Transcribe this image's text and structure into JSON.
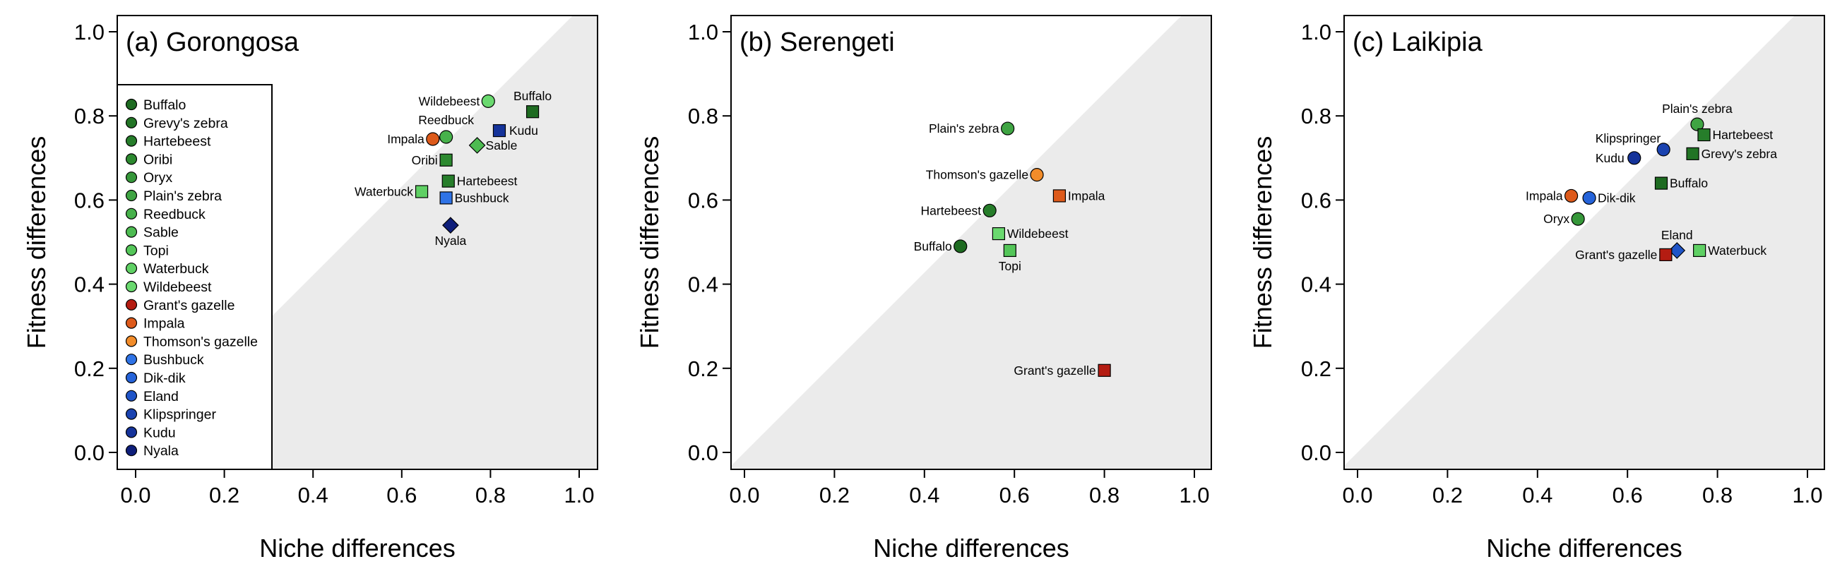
{
  "chart_data": [
    {
      "type": "scatter",
      "title": "(a) Gorongosa",
      "xlabel": "Niche differences",
      "ylabel": "Fitness differences",
      "xlim": [
        0,
        1
      ],
      "ylim": [
        0,
        1
      ],
      "xticks": [
        "0.0",
        "0.2",
        "0.4",
        "0.6",
        "0.8",
        "1.0"
      ],
      "yticks": [
        "0.0",
        "0.2",
        "0.4",
        "0.6",
        "0.8",
        "1.0"
      ],
      "shaded_region": "below the 1:1 line",
      "legend_position": "left",
      "legend": [
        {
          "label": "Buffalo",
          "color": "#1e6b21"
        },
        {
          "label": "Grevy's zebra",
          "color": "#227425"
        },
        {
          "label": "Hartebeest",
          "color": "#267d2a"
        },
        {
          "label": "Oribi",
          "color": "#2c892f"
        },
        {
          "label": "Oryx",
          "color": "#36973a"
        },
        {
          "label": "Plain's zebra",
          "color": "#3fa443"
        },
        {
          "label": "Reedbuck",
          "color": "#47b14b"
        },
        {
          "label": "Sable",
          "color": "#4dbb51"
        },
        {
          "label": "Topi",
          "color": "#54c659"
        },
        {
          "label": "Waterbuck",
          "color": "#5fd064"
        },
        {
          "label": "Wildebeest",
          "color": "#6ad96f"
        },
        {
          "label": "Grant's gazelle",
          "color": "#b41c12"
        },
        {
          "label": "Impala",
          "color": "#dd5a1b"
        },
        {
          "label": "Thomson's gazelle",
          "color": "#f28c2a"
        },
        {
          "label": "Bushbuck",
          "color": "#2f73e6"
        },
        {
          "label": "Dik-dik",
          "color": "#2563d9"
        },
        {
          "label": "Eland",
          "color": "#1f54c7"
        },
        {
          "label": "Klipspringer",
          "color": "#1a43b0"
        },
        {
          "label": "Kudu",
          "color": "#15339a"
        },
        {
          "label": "Nyala",
          "color": "#0e1e7a"
        }
      ],
      "points": [
        {
          "label": "Wildebeest",
          "x": 0.795,
          "y": 0.835,
          "shape": "circle",
          "color": "#6ad96f"
        },
        {
          "label": "Buffalo",
          "x": 0.895,
          "y": 0.81,
          "shape": "square",
          "color": "#1e6b21"
        },
        {
          "label": "Reedbuck",
          "x": 0.7,
          "y": 0.75,
          "shape": "circle",
          "color": "#47b14b"
        },
        {
          "label": "Kudu",
          "x": 0.82,
          "y": 0.765,
          "shape": "square",
          "color": "#15339a"
        },
        {
          "label": "Impala",
          "x": 0.67,
          "y": 0.745,
          "shape": "circle",
          "color": "#dd5a1b"
        },
        {
          "label": "Sable",
          "x": 0.77,
          "y": 0.73,
          "shape": "diamond",
          "color": "#4dbb51"
        },
        {
          "label": "Oribi",
          "x": 0.7,
          "y": 0.695,
          "shape": "square",
          "color": "#2c892f"
        },
        {
          "label": "Hartebeest",
          "x": 0.705,
          "y": 0.645,
          "shape": "square",
          "color": "#267d2a"
        },
        {
          "label": "Waterbuck",
          "x": 0.645,
          "y": 0.62,
          "shape": "square",
          "color": "#5fd064"
        },
        {
          "label": "Bushbuck",
          "x": 0.7,
          "y": 0.605,
          "shape": "square",
          "color": "#2f73e6"
        },
        {
          "label": "Nyala",
          "x": 0.71,
          "y": 0.54,
          "shape": "diamond",
          "color": "#0e1e7a"
        }
      ]
    },
    {
      "type": "scatter",
      "title": "(b) Serengeti",
      "xlabel": "Niche differences",
      "ylabel": "Fitness differences",
      "xlim": [
        0,
        1
      ],
      "ylim": [
        0,
        1
      ],
      "xticks": [
        "0.0",
        "0.2",
        "0.4",
        "0.6",
        "0.8",
        "1.0"
      ],
      "yticks": [
        "0.0",
        "0.2",
        "0.4",
        "0.6",
        "0.8",
        "1.0"
      ],
      "shaded_region": "below the 1:1 line",
      "points": [
        {
          "label": "Plain's zebra",
          "x": 0.585,
          "y": 0.77,
          "shape": "circle",
          "color": "#3fa443"
        },
        {
          "label": "Thomson's gazelle",
          "x": 0.65,
          "y": 0.66,
          "shape": "circle",
          "color": "#f28c2a"
        },
        {
          "label": "Impala",
          "x": 0.7,
          "y": 0.61,
          "shape": "square",
          "color": "#dd5a1b"
        },
        {
          "label": "Hartebeest",
          "x": 0.545,
          "y": 0.575,
          "shape": "circle",
          "color": "#267d2a"
        },
        {
          "label": "Wildebeest",
          "x": 0.565,
          "y": 0.52,
          "shape": "square",
          "color": "#6ad96f"
        },
        {
          "label": "Buffalo",
          "x": 0.48,
          "y": 0.49,
          "shape": "circle",
          "color": "#1e6b21"
        },
        {
          "label": "Topi",
          "x": 0.59,
          "y": 0.48,
          "shape": "square",
          "color": "#54c659"
        },
        {
          "label": "Grant's gazelle",
          "x": 0.8,
          "y": 0.195,
          "shape": "square",
          "color": "#b41c12"
        }
      ]
    },
    {
      "type": "scatter",
      "title": "(c) Laikipia",
      "xlabel": "Niche differences",
      "ylabel": "Fitness differences",
      "xlim": [
        0,
        1
      ],
      "ylim": [
        0,
        1
      ],
      "xticks": [
        "0.0",
        "0.2",
        "0.4",
        "0.6",
        "0.8",
        "1.0"
      ],
      "yticks": [
        "0.0",
        "0.2",
        "0.4",
        "0.6",
        "0.8",
        "1.0"
      ],
      "shaded_region": "below the 1:1 line",
      "points": [
        {
          "label": "Plain's zebra",
          "x": 0.755,
          "y": 0.78,
          "shape": "circle",
          "color": "#3fa443"
        },
        {
          "label": "Hartebeest",
          "x": 0.77,
          "y": 0.755,
          "shape": "square",
          "color": "#267d2a"
        },
        {
          "label": "Klipspringer",
          "x": 0.68,
          "y": 0.72,
          "shape": "circle",
          "color": "#1a43b0"
        },
        {
          "label": "Grevy's zebra",
          "x": 0.745,
          "y": 0.71,
          "shape": "square",
          "color": "#227425"
        },
        {
          "label": "Kudu",
          "x": 0.615,
          "y": 0.7,
          "shape": "circle",
          "color": "#15339a"
        },
        {
          "label": "Buffalo",
          "x": 0.675,
          "y": 0.64,
          "shape": "square",
          "color": "#1e6b21"
        },
        {
          "label": "Impala",
          "x": 0.475,
          "y": 0.61,
          "shape": "circle",
          "color": "#dd5a1b"
        },
        {
          "label": "Dik-dik",
          "x": 0.515,
          "y": 0.605,
          "shape": "circle",
          "color": "#2563d9"
        },
        {
          "label": "Oryx",
          "x": 0.49,
          "y": 0.555,
          "shape": "circle",
          "color": "#36973a"
        },
        {
          "label": "Eland",
          "x": 0.71,
          "y": 0.48,
          "shape": "diamond",
          "color": "#1f54c7"
        },
        {
          "label": "Waterbuck",
          "x": 0.76,
          "y": 0.48,
          "shape": "square",
          "color": "#5fd064"
        },
        {
          "label": "Grant's gazelle",
          "x": 0.685,
          "y": 0.47,
          "shape": "square",
          "color": "#b41c12"
        }
      ]
    }
  ]
}
